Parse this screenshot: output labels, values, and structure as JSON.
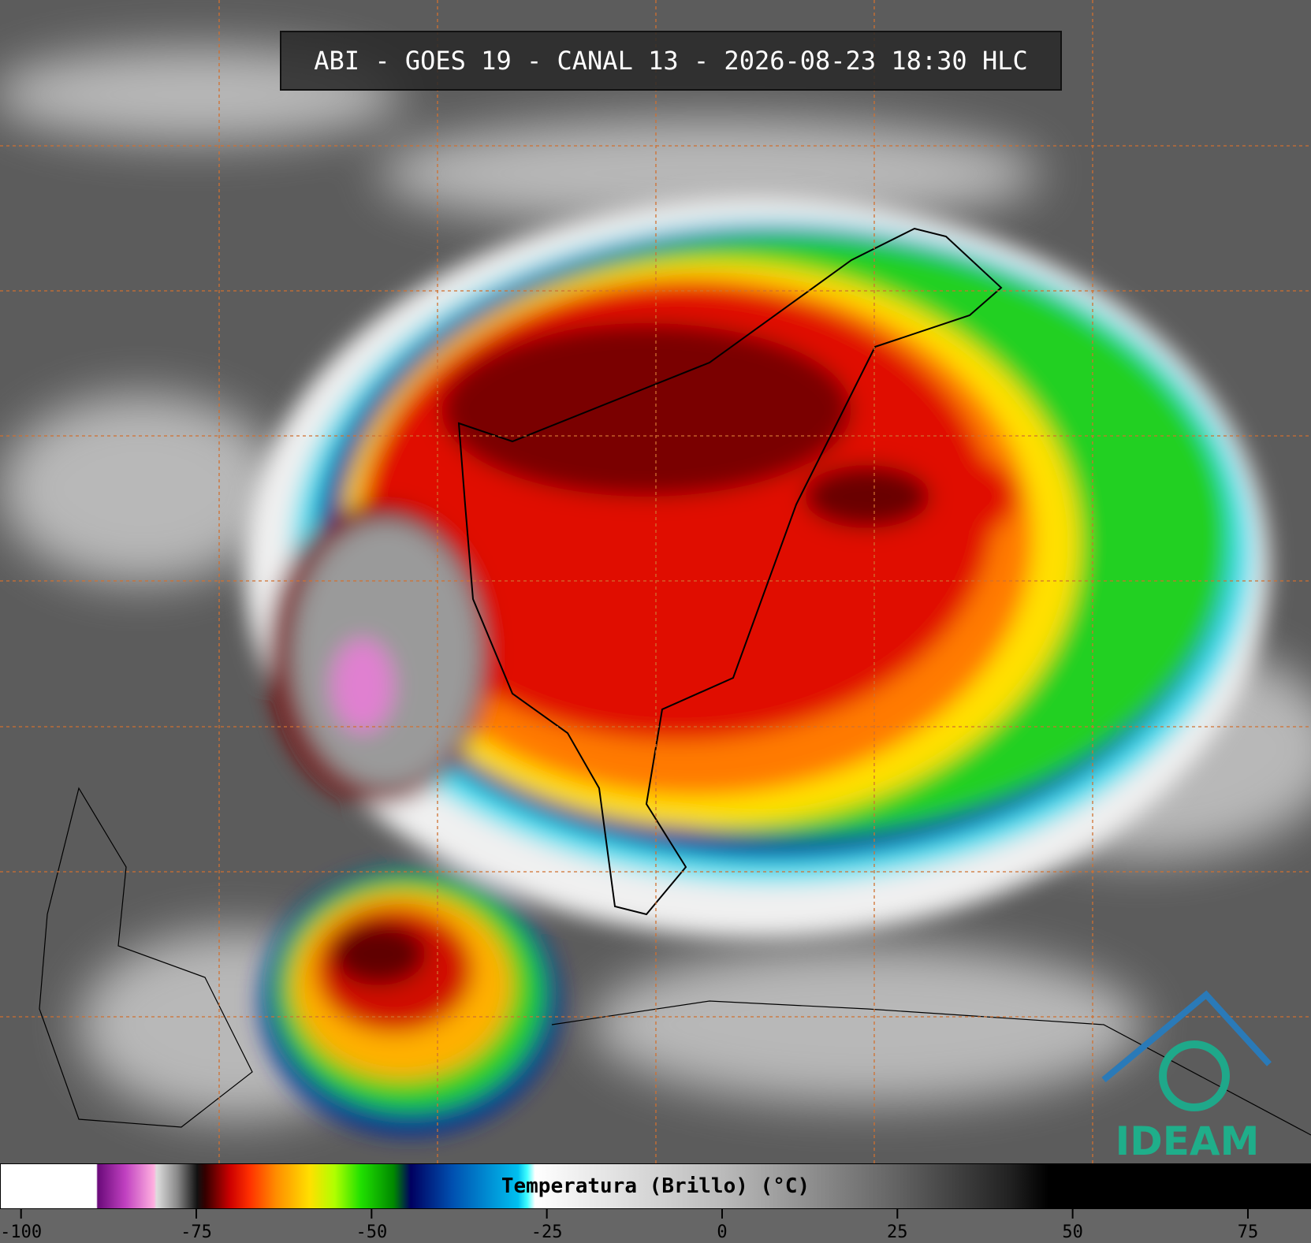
{
  "title": "ABI - GOES 19 - CANAL 13 - 2026-08-23 18:30 HLC",
  "colorbar": {
    "label": "Temperatura (Brillo) (°C)",
    "lim": [
      -103,
      84
    ],
    "ticks": [
      -100,
      -75,
      -50,
      -25,
      0,
      25,
      50,
      75
    ]
  },
  "logo": "IDEAM"
}
